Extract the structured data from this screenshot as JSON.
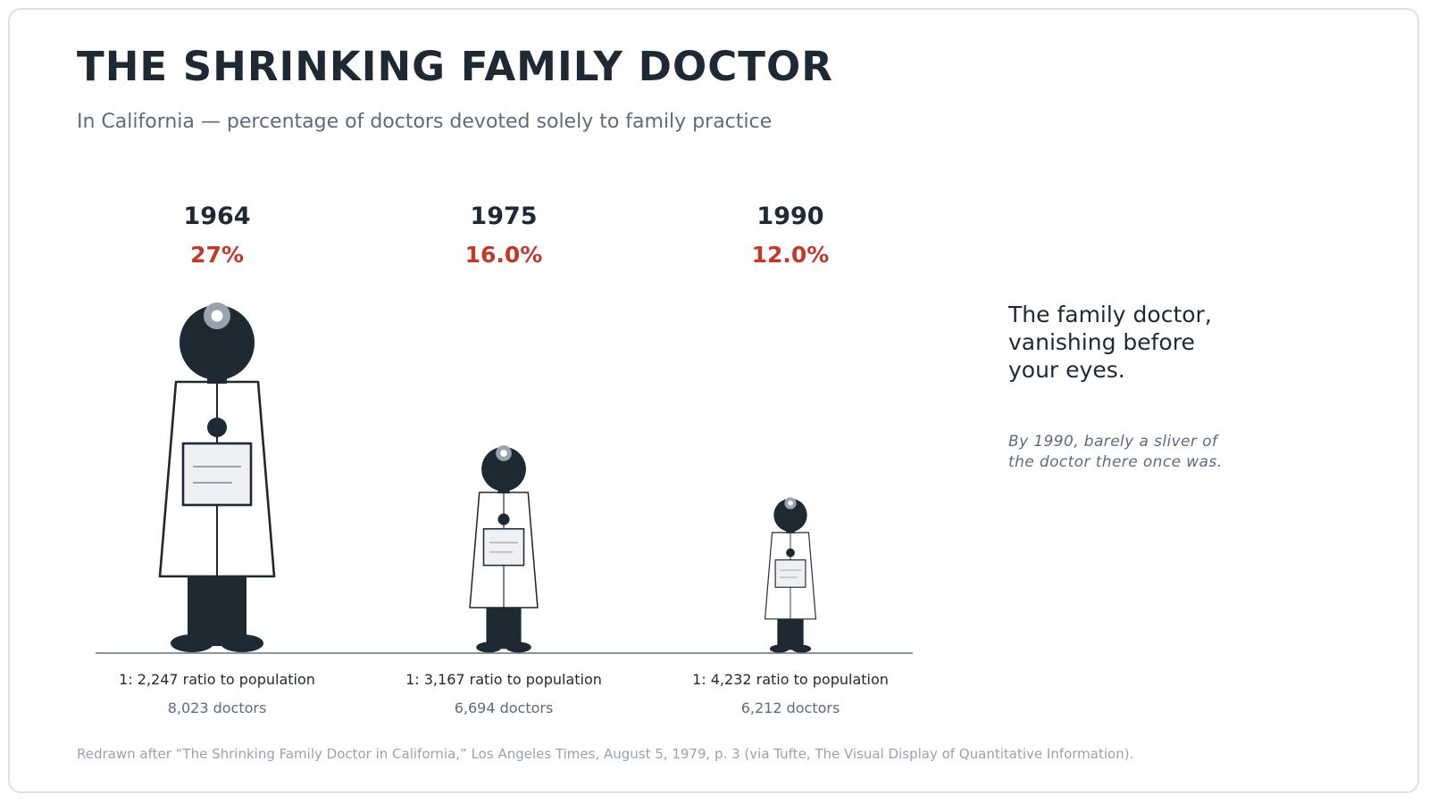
{
  "title": "THE SHRINKING FAMILY DOCTOR",
  "subtitle": "In California — percentage of doctors devoted solely to family practice",
  "chart_data": {
    "type": "pictograph",
    "title": "THE SHRINKING FAMILY DOCTOR",
    "subtitle": "In California — percentage of doctors devoted solely to family practice",
    "series": [
      {
        "year": "1964",
        "percent_label": "27%",
        "value": 27.0,
        "ratio_label": "1: 2,247 ratio to population",
        "doctors_label": "8,023 doctors"
      },
      {
        "year": "1975",
        "percent_label": "16.0%",
        "value": 16.0,
        "ratio_label": "1: 3,167 ratio to population",
        "doctors_label": "6,694 doctors"
      },
      {
        "year": "1990",
        "percent_label": "12.0%",
        "value": 12.0,
        "ratio_label": "1: 4,232 ratio to population",
        "doctors_label": "6,212 doctors"
      }
    ]
  },
  "annotation": {
    "headline": "The family doctor, vanishing before your eyes.",
    "note": "By 1990, barely a sliver of the doctor there once was."
  },
  "source": "Redrawn after “The Shrinking Family Doctor in California,” Los Angeles Times, August 5, 1979, p. 3 (via Tufte, The Visual Display of Quantitative Information).",
  "colors": {
    "ink": "#1f2933",
    "accent": "#c0392b",
    "muted": "#5f6b7c",
    "faint": "#9aa2ae",
    "stethoscope": "#9aa2ae",
    "clipboard": "#eef0f3",
    "baseline": "#8a94a3"
  }
}
